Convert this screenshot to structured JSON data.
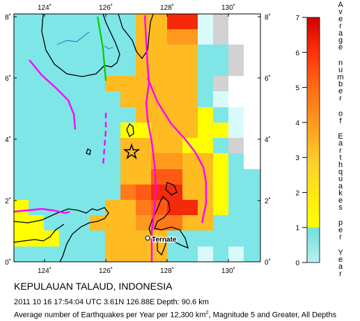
{
  "map": {
    "lon_range": [
      123,
      131
    ],
    "lat_range": [
      0,
      8
    ],
    "lon_ticks": [
      "124˚",
      "126˚",
      "128˚",
      "130˚"
    ],
    "lat_ticks": [
      "0˚",
      "2˚",
      "4˚",
      "6˚",
      "8˚"
    ],
    "city_label": "Ternate",
    "epicenter_marker": "star-icon",
    "colors": {
      "low": "#b9f0f0",
      "l1": "#7ee6e6",
      "l2": "#ffff00",
      "l3": "#ffbb22",
      "l4": "#ff9a1c",
      "l5": "#ff7a1a",
      "l6": "#ff5a14",
      "l7": "#f42a0a",
      "grey": "#d2d2d2",
      "pale": "#d9fafa",
      "plate_boundary": "#ff00ff",
      "fault": "#00cc00",
      "river": "#2266cc"
    }
  },
  "legend": {
    "title": "Average number of Earthquakes per Year",
    "ticks": [
      "0",
      "1",
      "2",
      "3",
      "4",
      "5",
      "6",
      "7"
    ]
  },
  "caption": {
    "title": "KEPULAUAN TALAUD, INDONESIA",
    "event": "2011 10 16 17:54:04 UTC 3.61N 126.88E Depth: 90.6 km",
    "stats_pre": "Average number of Earthquakes per Year per 12,300 km",
    "stats_sup": "2",
    "stats_post": ", Magnitude 5 and Greater, All Depths"
  }
}
